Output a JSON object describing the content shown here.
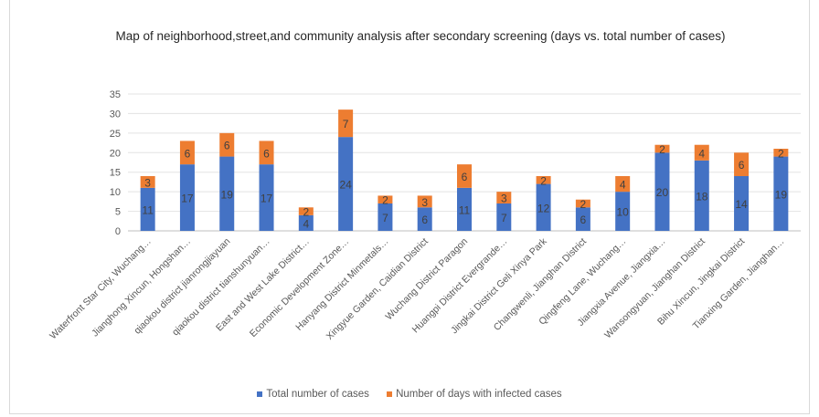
{
  "chart_data": {
    "type": "bar",
    "stacked": true,
    "title": "Map of neighborhood,street,and community analysis after secondary screening (days vs. total number of cases)",
    "xlabel": "",
    "ylabel": "",
    "ylim": [
      0,
      35
    ],
    "yticks": [
      0,
      5,
      10,
      15,
      20,
      25,
      30,
      35
    ],
    "grid": true,
    "legend_position": "bottom",
    "categories": [
      "Waterfront Star City, Wuchang…",
      "Jianghong Xincun, Hongshan…",
      "qiaokou district jianrongjiayuan",
      "qiaokou district tianshunyuan…",
      "East and West Lake District…",
      "Economic Development Zone…",
      "Hanyang District Minmetals…",
      "Xingyue Garden, Caidian District",
      "Wuchang District Paragon",
      "Huangpi District Evergrande…",
      "Jingkai District Geli Xinya Park",
      "Changwenli, Jianghan District",
      "Qingfeng Lane, Wuchang…",
      "Jiangxia Avenue, Jiangxia…",
      "Wansongyuan, Jianghan District",
      "Bihu Xincun, Jingkai District",
      "Tianxing Garden, Jianghan…"
    ],
    "series": [
      {
        "name": "Total number of cases",
        "color": "#4472C4",
        "values": [
          11,
          17,
          19,
          17,
          4,
          24,
          7,
          6,
          11,
          7,
          12,
          6,
          10,
          20,
          18,
          14,
          19
        ]
      },
      {
        "name": "Number of days with infected cases",
        "color": "#ED7D31",
        "values": [
          3,
          6,
          6,
          6,
          2,
          7,
          2,
          3,
          6,
          3,
          2,
          2,
          4,
          2,
          4,
          6,
          2
        ]
      }
    ]
  }
}
